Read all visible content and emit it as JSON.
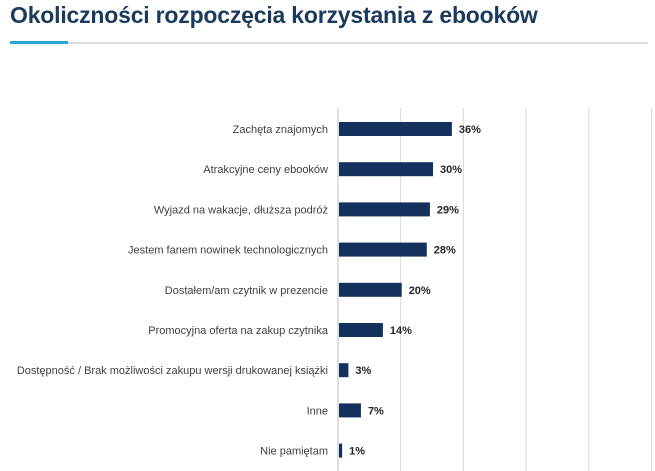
{
  "page": {
    "title": "Okoliczności rozpoczęcia korzystania z ebooków"
  },
  "colors": {
    "bar": "#13315c",
    "accent": "#2aa7d8",
    "grid": "#d9d9d9",
    "title": "#1b3a5c"
  },
  "chart_data": {
    "type": "bar",
    "orientation": "horizontal",
    "title": "Okoliczności rozpoczęcia korzystania z ebooków",
    "categories": [
      "Zachęta znajomych",
      "Atrakcyjne ceny ebooków",
      "Wyjazd na wakacje, dłuższa podróż",
      "Jestem fanem nowinek technologicznych",
      "Dostałem/am czytnik w prezencie",
      "Promocyjna oferta na zakup czytnika",
      "Dostępność / Brak możliwości zakupu wersji drukowanej książki",
      "Inne",
      "Nie pamiętam"
    ],
    "values": [
      36,
      30,
      29,
      28,
      20,
      14,
      3,
      7,
      1
    ],
    "value_labels": [
      "36%",
      "30%",
      "29%",
      "28%",
      "20%",
      "14%",
      "3%",
      "7%",
      "1%"
    ],
    "unit": "%",
    "xlim": [
      0,
      100
    ],
    "grid": true
  }
}
